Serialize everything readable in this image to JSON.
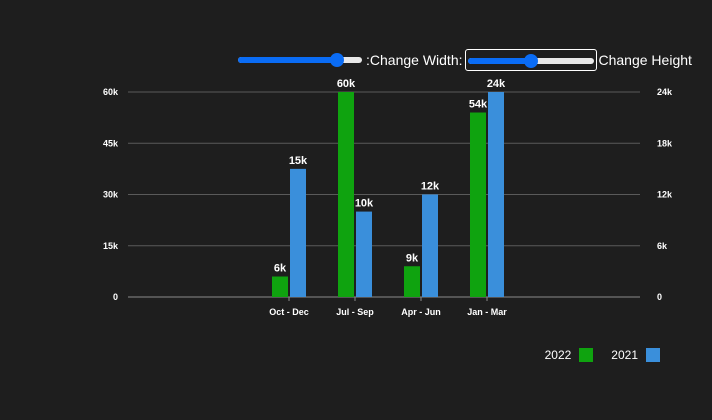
{
  "controls": {
    "width_label": ":Change Width:",
    "height_label": "Change Height",
    "width_slider_value": 0.84,
    "height_slider_value": 0.5
  },
  "colors": {
    "background": "#1e1e1e",
    "series_2022": "#0fa30f",
    "series_2021": "#3a8fdb",
    "slider_accent": "#0a6cf5"
  },
  "chart_data": {
    "type": "bar",
    "categories": [
      "Oct - Dec",
      "Jul - Sep",
      "Apr - Jun",
      "Jan - Mar"
    ],
    "series": [
      {
        "name": "2022",
        "axis": "left",
        "values": [
          6000,
          60000,
          9000,
          54000
        ],
        "labels": [
          "6k",
          "60k",
          "9k",
          "54k"
        ]
      },
      {
        "name": "2021",
        "axis": "right",
        "values": [
          15000,
          10000,
          12000,
          24000
        ],
        "labels": [
          "15k",
          "10k",
          "12k",
          "24k"
        ]
      }
    ],
    "left_axis": {
      "range": [
        0,
        60000
      ],
      "ticks": [
        0,
        15000,
        30000,
        45000,
        60000
      ],
      "tick_labels": [
        "0",
        "15k",
        "30k",
        "45k",
        "60k"
      ]
    },
    "right_axis": {
      "range": [
        0,
        24000
      ],
      "ticks": [
        0,
        6000,
        12000,
        18000,
        24000
      ],
      "tick_labels": [
        "0",
        "6k",
        "12k",
        "18k",
        "24k"
      ]
    },
    "grid": true,
    "legend": {
      "position": "bottom-right",
      "entries": [
        "2022",
        "2021"
      ]
    },
    "title": "",
    "xlabel": "",
    "ylabel": ""
  }
}
